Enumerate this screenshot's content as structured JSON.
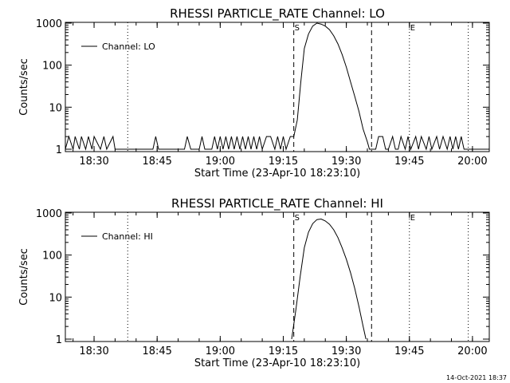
{
  "chart_data": [
    {
      "type": "line",
      "title": "RHESSI PARTICLE_RATE Channel: LO",
      "xlabel": "Start Time (23-Apr-10 18:23:10)",
      "ylabel": "Counts/sec",
      "yscale": "log",
      "ylim": [
        1,
        1000
      ],
      "xlim": [
        "18:23:10",
        "20:04:00"
      ],
      "x_ticks": [
        "18:30",
        "18:45",
        "19:00",
        "19:15",
        "19:30",
        "19:45",
        "20:00"
      ],
      "y_ticks": [
        "1",
        "10",
        "100",
        "1000"
      ],
      "legend": {
        "label": "Channel: LO",
        "placement": "top-left"
      },
      "markers": {
        "dashed": [
          "19:17:30",
          "19:36:00"
        ],
        "dotted": [
          "18:38:00",
          "19:45:00",
          "19:59:00"
        ],
        "labels": [
          {
            "text": "S",
            "at": "19:17:30"
          },
          {
            "text": "E",
            "at": "19:45:00"
          }
        ]
      },
      "series": [
        {
          "x": [
            "18:23:10",
            "18:24:00",
            "18:25:00",
            "18:25:30",
            "18:26:30",
            "18:27:00",
            "18:28:00",
            "18:28:40",
            "18:29:30",
            "18:30:00",
            "18:31:30",
            "18:32:20",
            "18:33:00",
            "18:34:30",
            "18:35:00",
            "18:36:00",
            "18:44:00",
            "18:44:40",
            "18:45:20",
            "18:51:30",
            "18:52:10",
            "18:53:00",
            "18:55:00",
            "18:55:40",
            "18:56:20",
            "18:58:00",
            "18:58:40",
            "18:59:20",
            "19:00:00",
            "19:00:40",
            "19:01:20",
            "19:02:00",
            "19:02:40",
            "19:03:20",
            "19:04:00",
            "19:04:40",
            "19:05:20",
            "19:06:00",
            "19:06:40",
            "19:07:20",
            "19:08:00",
            "19:08:40",
            "19:09:20",
            "19:10:00",
            "19:11:00",
            "19:12:00",
            "19:13:00",
            "19:13:40",
            "19:14:20",
            "19:15:00",
            "19:15:40",
            "19:16:40",
            "19:17:30",
            "19:18:20",
            "19:19:10",
            "19:20:00",
            "19:21:00",
            "19:22:00",
            "19:23:00",
            "19:24:00",
            "19:25:00",
            "19:26:00",
            "19:27:00",
            "19:28:00",
            "19:29:00",
            "19:30:00",
            "19:31:00",
            "19:32:00",
            "19:33:00",
            "19:34:00",
            "19:35:00",
            "19:35:30",
            "19:36:00",
            "19:37:00",
            "19:37:40",
            "19:38:40",
            "19:39:20",
            "19:40:00",
            "19:41:00",
            "19:41:40",
            "19:42:20",
            "19:43:00",
            "19:44:00",
            "19:44:40",
            "19:45:20",
            "19:46:30",
            "19:47:10",
            "19:47:50",
            "19:49:00",
            "19:49:40",
            "19:50:20",
            "19:51:30",
            "19:52:10",
            "19:53:00",
            "19:54:00",
            "19:54:40",
            "19:55:20",
            "19:56:00",
            "19:56:40",
            "19:57:20",
            "19:58:00",
            "19:59:00",
            "20:00:00",
            "20:01:00",
            "20:03:00"
          ],
          "y": [
            1,
            2,
            1,
            2,
            1,
            2,
            1,
            2,
            1,
            2,
            1,
            2,
            1,
            2,
            1,
            1,
            1,
            2,
            1,
            1,
            2,
            1,
            1,
            2,
            1,
            1,
            2,
            1,
            2,
            1,
            2,
            1,
            2,
            1,
            2,
            1,
            2,
            1,
            2,
            1,
            2,
            1,
            2,
            1,
            2,
            2,
            1,
            2,
            1,
            2,
            1,
            2,
            2,
            5,
            40,
            250,
            550,
            850,
            1000,
            950,
            850,
            700,
            500,
            320,
            180,
            90,
            40,
            18,
            8,
            3,
            1.5,
            1,
            1,
            1,
            2,
            2,
            1,
            1,
            2,
            1,
            1,
            2,
            1,
            2,
            1,
            2,
            1,
            2,
            1,
            2,
            1,
            2,
            1,
            2,
            1,
            2,
            1,
            2,
            1,
            2,
            1,
            1,
            1,
            1,
            1
          ]
        }
      ]
    },
    {
      "type": "line",
      "title": "RHESSI PARTICLE_RATE Channel: HI",
      "xlabel": "Start Time (23-Apr-10 18:23:10)",
      "ylabel": "Counts/sec",
      "yscale": "log",
      "ylim": [
        1,
        1000
      ],
      "xlim": [
        "18:23:10",
        "20:04:00"
      ],
      "x_ticks": [
        "18:30",
        "18:45",
        "19:00",
        "19:15",
        "19:30",
        "19:45",
        "20:00"
      ],
      "y_ticks": [
        "1",
        "10",
        "100",
        "1000"
      ],
      "legend": {
        "label": "Channel: HI",
        "placement": "top-left"
      },
      "markers": {
        "dashed": [
          "19:17:30",
          "19:36:00"
        ],
        "dotted": [
          "18:38:00",
          "19:45:00",
          "19:59:00"
        ],
        "labels": [
          {
            "text": "S",
            "at": "19:17:30"
          },
          {
            "text": "E",
            "at": "19:45:00"
          }
        ]
      },
      "series": [
        {
          "x": [
            "19:17:00",
            "19:18:00",
            "19:19:00",
            "19:20:00",
            "19:21:00",
            "19:22:00",
            "19:23:00",
            "19:24:00",
            "19:25:00",
            "19:26:00",
            "19:27:00",
            "19:28:00",
            "19:29:00",
            "19:30:00",
            "19:31:00",
            "19:32:00",
            "19:33:00",
            "19:34:00",
            "19:34:40"
          ],
          "y": [
            1,
            5,
            30,
            150,
            350,
            560,
            700,
            720,
            650,
            540,
            400,
            260,
            150,
            80,
            38,
            16,
            6,
            2,
            1
          ]
        }
      ]
    }
  ],
  "footer": {
    "timestamp": "14-Oct-2021 18:37"
  }
}
